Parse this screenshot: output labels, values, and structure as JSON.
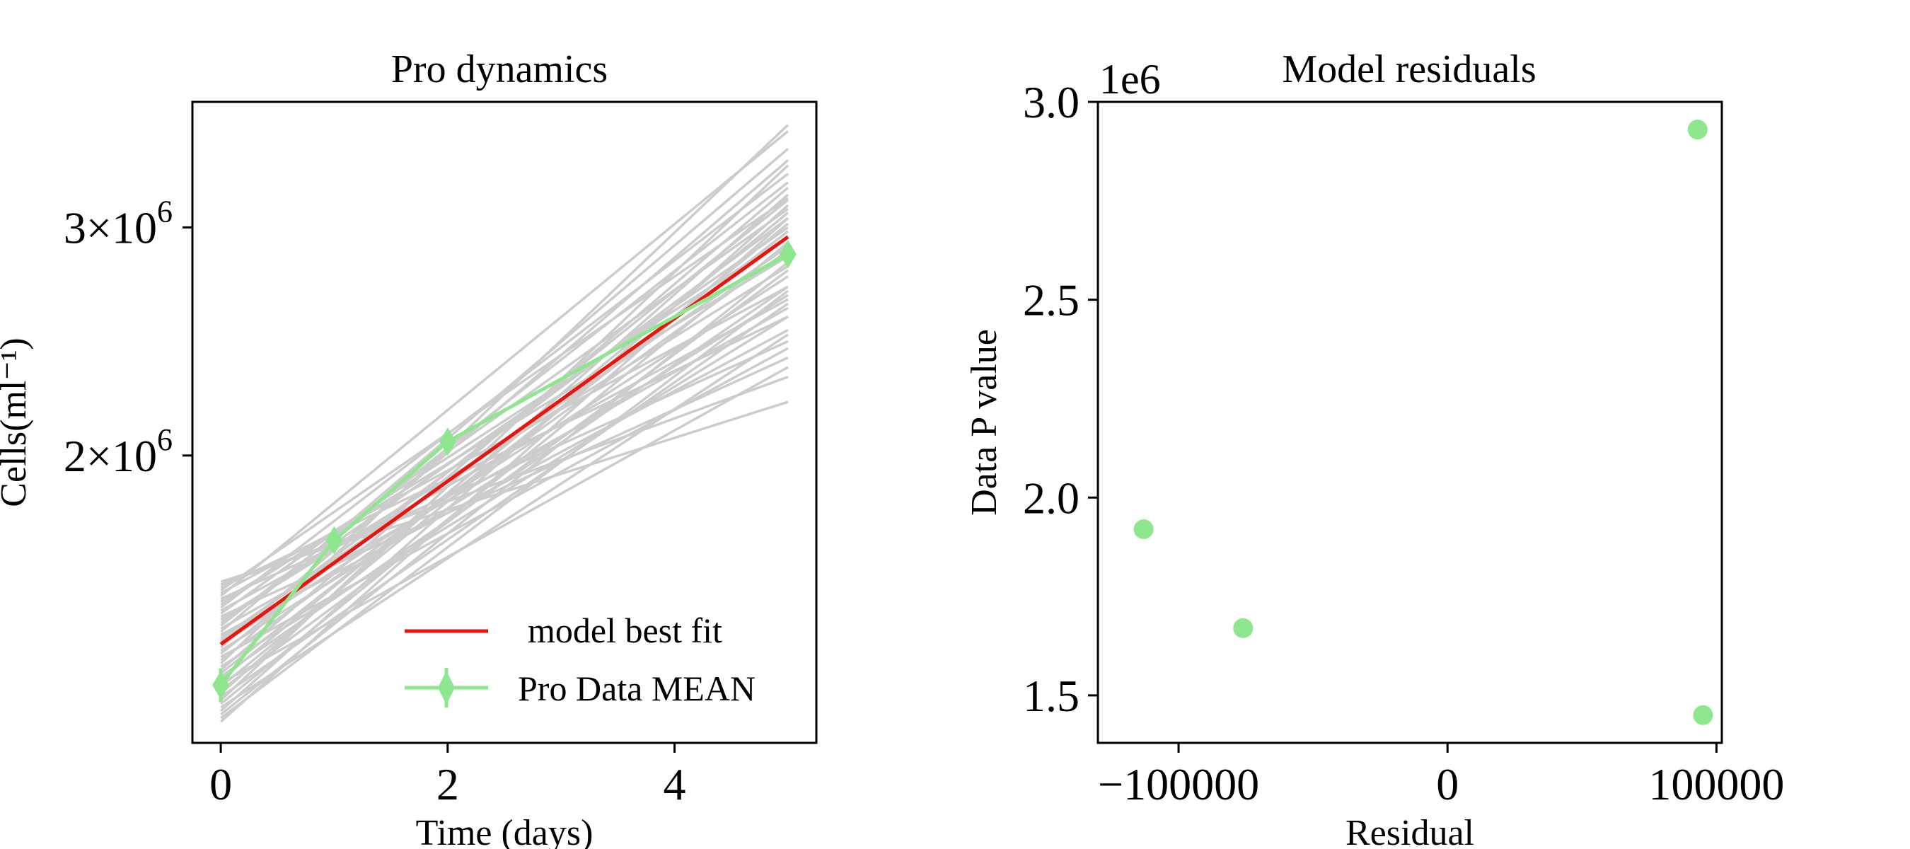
{
  "chart_data": [
    {
      "type": "line",
      "title": "Pro dynamics",
      "xlabel": "Time (days)",
      "ylabel": "Cells(ml⁻¹)",
      "xlim": [
        -0.25,
        5.25
      ],
      "ylim": [
        1200000,
        3750000
      ],
      "yscale": "log",
      "xticks": [
        0,
        2,
        4
      ],
      "xtick_labels": [
        "0",
        "2",
        "4"
      ],
      "yticks": [
        2000000,
        3000000
      ],
      "ytick_labels": [
        {
          "base": "2×10",
          "exp": "6"
        },
        {
          "base": "3×10",
          "exp": "6"
        }
      ],
      "grid": false,
      "legend_position": "lower-right",
      "series": [
        {
          "name": "model best fit",
          "color": "#e8150f",
          "x": [
            0,
            5
          ],
          "values": [
            1430000,
            2950000
          ]
        },
        {
          "name": "Pro Data MEAN",
          "color": "#8ee68e",
          "marker": "diamond",
          "x": [
            0,
            1,
            2,
            5
          ],
          "values": [
            1330000,
            1720000,
            2050000,
            2860000
          ],
          "yerr": [
            40000,
            25000,
            35000,
            20000
          ]
        }
      ],
      "ensemble": {
        "color": "#cccccc",
        "x": [
          0,
          5
        ],
        "start": [
          1598000,
          1590000,
          1582000,
          1574000,
          1566000,
          1558000,
          1550000,
          1542000,
          1534000,
          1526000,
          1518000,
          1510000,
          1502000,
          1494000,
          1486000,
          1478000,
          1470000,
          1462000,
          1454000,
          1446000,
          1438000,
          1430000,
          1422000,
          1414000,
          1406000,
          1398000,
          1390000,
          1382000,
          1374000,
          1366000,
          1358000,
          1350000,
          1342000,
          1334000,
          1326000,
          1318000,
          1310000,
          1302000,
          1294000,
          1286000,
          1278000,
          1270000,
          1262000,
          1254000,
          1246000
        ],
        "end": [
          2200000,
          2300000,
          2560000,
          3160000,
          2700000,
          3560000,
          2450000,
          2850000,
          2950000,
          3300000,
          2640000,
          3100000,
          2380000,
          2800000,
          3000000,
          3250000,
          2600000,
          3450000,
          2500000,
          2900000,
          3050000,
          2750000,
          3380000,
          2660000,
          3150000,
          2420000,
          2880000,
          3600000,
          2560000,
          3220000,
          2980000,
          2700000,
          3080000,
          2340000,
          3020000,
          2780000,
          3180000,
          2620000,
          3350000,
          2920000,
          2480000,
          3120000,
          2820000,
          2680000,
          3050000
        ]
      }
    },
    {
      "type": "scatter",
      "title": "Model residuals",
      "xlabel": "Residual",
      "ylabel": "Data P value",
      "offset_label": "1e6",
      "xlim": [
        -130000,
        102000
      ],
      "ylim": [
        1.38,
        3.0
      ],
      "xticks": [
        -100000,
        0,
        100000
      ],
      "xtick_labels": [
        "−100000",
        "0",
        "100000"
      ],
      "yticks": [
        1.5,
        2.0,
        2.5,
        3.0
      ],
      "ytick_labels": [
        "1.5",
        "2.0",
        "2.5",
        "3.0"
      ],
      "grid": false,
      "color": "#8ee68e",
      "points": [
        {
          "x": -113000,
          "y": 1.92
        },
        {
          "x": -76000,
          "y": 1.67
        },
        {
          "x": 95000,
          "y": 1.45
        },
        {
          "x": 93000,
          "y": 2.93
        }
      ]
    }
  ]
}
